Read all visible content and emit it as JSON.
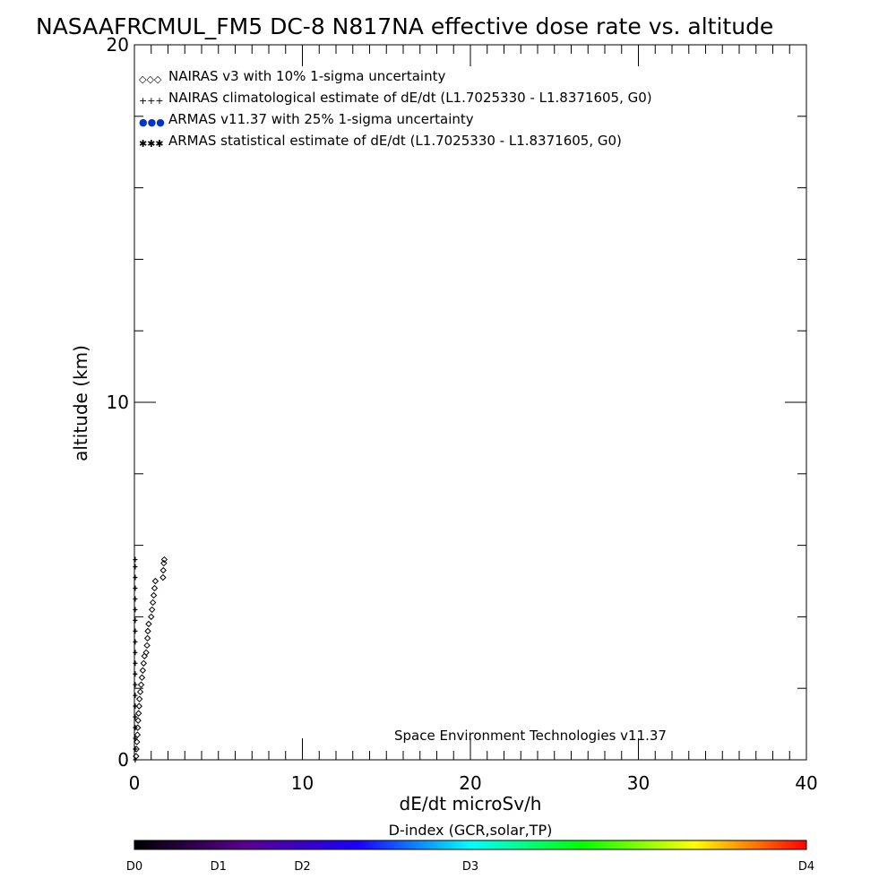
{
  "chart_data": {
    "type": "scatter",
    "title": "NASAAFRCMUL_FM5 DC-8   N817NA effective dose rate vs. altitude",
    "xlabel": "dE/dt microSv/h",
    "ylabel": "altitude (km)",
    "xlim": [
      0,
      40
    ],
    "ylim": [
      0,
      20
    ],
    "x_ticks": [
      0,
      10,
      20,
      30,
      40
    ],
    "y_ticks": [
      0,
      10,
      20
    ],
    "grid": false,
    "legend_position": "top-left",
    "legend": [
      {
        "symbol": "◇◇◇",
        "label": "NAIRAS v3 with 10% 1-sigma uncertainty",
        "color": "#000000"
      },
      {
        "symbol": "+++",
        "label": "NAIRAS climatological estimate of dE/dt (L1.7025330 - L1.8371605, G0)",
        "color": "#000000"
      },
      {
        "symbol": "●●●",
        "label": "ARMAS v11.37 with 25% 1-sigma uncertainty",
        "color": "#0033cc"
      },
      {
        "symbol": "✱✱✱",
        "label": "ARMAS statistical estimate of dE/dt (L1.7025330 - L1.8371605, G0)",
        "color": "#000000"
      }
    ],
    "series": [
      {
        "marker": "diamond",
        "points": [
          [
            0.1,
            0.1
          ],
          [
            0.12,
            0.3
          ],
          [
            0.15,
            0.5
          ],
          [
            0.18,
            0.7
          ],
          [
            0.2,
            0.9
          ],
          [
            0.22,
            1.1
          ],
          [
            0.25,
            1.3
          ],
          [
            0.28,
            1.5
          ],
          [
            0.3,
            1.7
          ],
          [
            0.35,
            1.9
          ],
          [
            0.4,
            2.1
          ],
          [
            0.45,
            2.3
          ],
          [
            0.5,
            2.5
          ],
          [
            0.55,
            2.7
          ],
          [
            0.6,
            2.9
          ],
          [
            0.7,
            3.0
          ],
          [
            0.75,
            3.2
          ],
          [
            0.78,
            3.4
          ],
          [
            0.8,
            3.6
          ],
          [
            0.85,
            3.8
          ],
          [
            1.0,
            4.0
          ],
          [
            1.05,
            4.2
          ],
          [
            1.1,
            4.4
          ],
          [
            1.15,
            4.6
          ],
          [
            1.2,
            4.8
          ],
          [
            1.25,
            5.0
          ],
          [
            1.7,
            5.1
          ],
          [
            1.72,
            5.3
          ],
          [
            1.75,
            5.5
          ],
          [
            1.78,
            5.6
          ]
        ]
      },
      {
        "marker": "plus",
        "points": [
          [
            0.05,
            0.0
          ],
          [
            0.05,
            0.3
          ],
          [
            0.05,
            0.6
          ],
          [
            0.05,
            0.9
          ],
          [
            0.05,
            1.2
          ],
          [
            0.05,
            1.5
          ],
          [
            0.05,
            1.8
          ],
          [
            0.05,
            2.1
          ],
          [
            0.05,
            2.4
          ],
          [
            0.05,
            2.7
          ],
          [
            0.05,
            3.0
          ],
          [
            0.05,
            3.3
          ],
          [
            0.05,
            3.6
          ],
          [
            0.05,
            3.9
          ],
          [
            0.05,
            4.2
          ],
          [
            0.05,
            4.5
          ],
          [
            0.05,
            4.8
          ],
          [
            0.05,
            5.1
          ],
          [
            0.05,
            5.4
          ],
          [
            0.05,
            5.6
          ]
        ]
      }
    ],
    "annotation": "Space Environment Technologies v11.37",
    "colorbar": {
      "title": "D-index (GCR,solar,TP)",
      "labels": [
        {
          "text": "D0",
          "pos": 0.0
        },
        {
          "text": "D1",
          "pos": 0.125
        },
        {
          "text": "D2",
          "pos": 0.25
        },
        {
          "text": "D3",
          "pos": 0.5
        },
        {
          "text": "D4",
          "pos": 1.0
        }
      ],
      "colors": [
        "#000000",
        "#5a0090",
        "#1a00ff",
        "#00ffff",
        "#00ff00",
        "#ffff00",
        "#ff0000"
      ]
    }
  }
}
